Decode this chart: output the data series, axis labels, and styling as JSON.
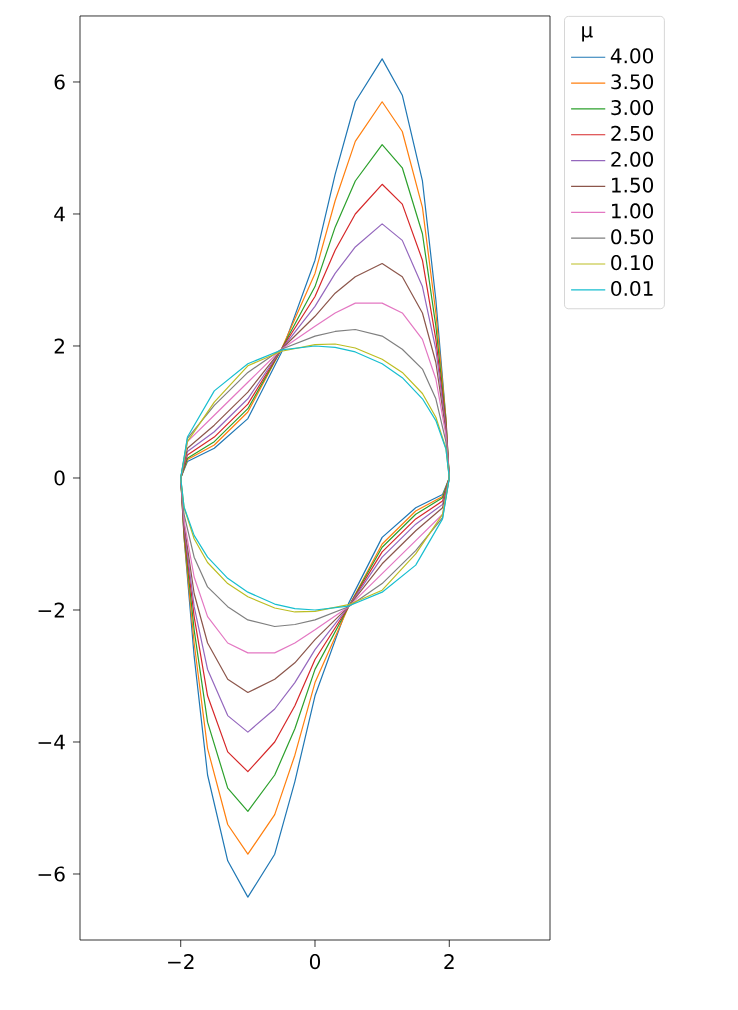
{
  "chart_data": {
    "type": "line",
    "legend_title": "μ",
    "legend": "right",
    "marker": "none",
    "line_style": "solid",
    "xlim": [
      -3.5,
      3.5
    ],
    "ylim": [
      -7,
      7
    ],
    "xticks": [
      {
        "value": -2,
        "label": "−2"
      },
      0,
      2
    ],
    "yticks": [
      {
        "value": -6,
        "label": "−6"
      },
      {
        "value": -4,
        "label": "−4"
      },
      {
        "value": -2,
        "label": "−2"
      },
      0,
      2,
      4,
      6
    ],
    "series": [
      {
        "name": "4.00",
        "color": "#1f77b4",
        "x": [
          -2,
          -1.9,
          -1.5,
          -1,
          -0.5,
          0,
          0.3,
          0.6,
          1,
          1.3,
          1.6,
          1.8,
          1.95,
          2,
          1.9,
          1.5,
          1,
          0.5,
          0,
          -0.3,
          -0.6,
          -1,
          -1.3,
          -1.6,
          -1.8,
          -1.95,
          -2
        ],
        "values": [
          0,
          0.25,
          0.45,
          0.9,
          1.9,
          3.3,
          4.6,
          5.7,
          6.35,
          5.8,
          4.5,
          2.7,
          0.9,
          0,
          -0.25,
          -0.45,
          -0.9,
          -1.9,
          -3.3,
          -4.6,
          -5.7,
          -6.35,
          -5.8,
          -4.5,
          -2.7,
          -0.9,
          0
        ]
      },
      {
        "name": "3.50",
        "color": "#ff7f0e",
        "x": [
          -2,
          -1.9,
          -1.5,
          -1,
          -0.5,
          0,
          0.3,
          0.6,
          1,
          1.3,
          1.6,
          1.8,
          1.95,
          2,
          1.9,
          1.5,
          1,
          0.5,
          0,
          -0.3,
          -0.6,
          -1,
          -1.3,
          -1.6,
          -1.8,
          -1.95,
          -2
        ],
        "values": [
          0,
          0.28,
          0.5,
          1.0,
          1.95,
          3.1,
          4.2,
          5.1,
          5.7,
          5.25,
          4.1,
          2.5,
          0.9,
          0,
          -0.28,
          -0.5,
          -1.0,
          -1.95,
          -3.1,
          -4.2,
          -5.1,
          -5.7,
          -5.25,
          -4.1,
          -2.5,
          -0.9,
          0
        ]
      },
      {
        "name": "3.00",
        "color": "#2ca02c",
        "x": [
          -2,
          -1.9,
          -1.5,
          -1,
          -0.5,
          0,
          0.3,
          0.6,
          1,
          1.3,
          1.6,
          1.8,
          1.95,
          2,
          1.9,
          1.5,
          1,
          0.5,
          0,
          -0.3,
          -0.6,
          -1,
          -1.3,
          -1.6,
          -1.8,
          -1.95,
          -2
        ],
        "values": [
          0,
          0.3,
          0.55,
          1.05,
          1.95,
          2.9,
          3.8,
          4.5,
          5.05,
          4.7,
          3.7,
          2.3,
          0.85,
          0,
          -0.3,
          -0.55,
          -1.05,
          -1.95,
          -2.9,
          -3.8,
          -4.5,
          -5.05,
          -4.7,
          -3.7,
          -2.3,
          -0.85,
          0
        ]
      },
      {
        "name": "2.50",
        "color": "#d62728",
        "x": [
          -2,
          -1.9,
          -1.5,
          -1,
          -0.5,
          0,
          0.3,
          0.6,
          1,
          1.3,
          1.6,
          1.8,
          1.95,
          2,
          1.9,
          1.5,
          1,
          0.5,
          0,
          -0.3,
          -0.6,
          -1,
          -1.3,
          -1.6,
          -1.8,
          -1.95,
          -2
        ],
        "values": [
          0,
          0.35,
          0.62,
          1.12,
          1.95,
          2.75,
          3.45,
          4.0,
          4.45,
          4.15,
          3.3,
          2.1,
          0.8,
          0,
          -0.35,
          -0.62,
          -1.12,
          -1.95,
          -2.75,
          -3.45,
          -4.0,
          -4.45,
          -4.15,
          -3.3,
          -2.1,
          -0.8,
          0
        ]
      },
      {
        "name": "2.00",
        "color": "#9467bd",
        "x": [
          -2,
          -1.9,
          -1.5,
          -1,
          -0.5,
          0,
          0.3,
          0.6,
          1,
          1.3,
          1.6,
          1.8,
          1.95,
          2,
          1.9,
          1.5,
          1,
          0.5,
          0,
          -0.3,
          -0.6,
          -1,
          -1.3,
          -1.6,
          -1.8,
          -1.95,
          -2
        ],
        "values": [
          0,
          0.4,
          0.7,
          1.2,
          1.95,
          2.6,
          3.1,
          3.5,
          3.85,
          3.6,
          2.9,
          1.95,
          0.75,
          0,
          -0.4,
          -0.7,
          -1.2,
          -1.95,
          -2.6,
          -3.1,
          -3.5,
          -3.85,
          -3.6,
          -2.9,
          -1.95,
          -0.75,
          0
        ]
      },
      {
        "name": "1.50",
        "color": "#8c564b",
        "x": [
          -2,
          -1.9,
          -1.5,
          -1,
          -0.5,
          0,
          0.3,
          0.6,
          1,
          1.3,
          1.6,
          1.8,
          1.95,
          2,
          1.9,
          1.5,
          1,
          0.5,
          0,
          -0.3,
          -0.6,
          -1,
          -1.3,
          -1.6,
          -1.8,
          -1.95,
          -2
        ],
        "values": [
          0,
          0.45,
          0.8,
          1.3,
          1.95,
          2.45,
          2.8,
          3.05,
          3.25,
          3.05,
          2.5,
          1.75,
          0.7,
          0,
          -0.45,
          -0.8,
          -1.3,
          -1.95,
          -2.45,
          -2.8,
          -3.05,
          -3.25,
          -3.05,
          -2.5,
          -1.75,
          -0.7,
          0
        ]
      },
      {
        "name": "1.00",
        "color": "#e377c2",
        "x": [
          -2,
          -1.9,
          -1.5,
          -1,
          -0.5,
          0,
          0.3,
          0.6,
          1,
          1.3,
          1.6,
          1.8,
          1.95,
          2,
          1.9,
          1.5,
          1,
          0.5,
          0,
          -0.3,
          -0.6,
          -1,
          -1.3,
          -1.6,
          -1.8,
          -1.95,
          -2
        ],
        "values": [
          0,
          0.55,
          0.95,
          1.45,
          1.95,
          2.3,
          2.5,
          2.65,
          2.65,
          2.5,
          2.1,
          1.5,
          0.65,
          0,
          -0.55,
          -0.95,
          -1.45,
          -1.95,
          -2.3,
          -2.5,
          -2.65,
          -2.65,
          -2.5,
          -2.1,
          -1.5,
          -0.65,
          0
        ]
      },
      {
        "name": "0.50",
        "color": "#7f7f7f",
        "x": [
          -2,
          -1.9,
          -1.5,
          -1,
          -0.5,
          0,
          0.3,
          0.6,
          1,
          1.3,
          1.6,
          1.8,
          1.95,
          2,
          1.9,
          1.5,
          1,
          0.5,
          0,
          -0.3,
          -0.6,
          -1,
          -1.3,
          -1.6,
          -1.8,
          -1.95,
          -2
        ],
        "values": [
          0,
          0.6,
          1.1,
          1.6,
          1.95,
          2.15,
          2.22,
          2.25,
          2.15,
          1.95,
          1.65,
          1.2,
          0.55,
          0,
          -0.6,
          -1.1,
          -1.6,
          -1.95,
          -2.15,
          -2.22,
          -2.25,
          -2.15,
          -1.95,
          -1.65,
          -1.2,
          -0.55,
          0
        ]
      },
      {
        "name": "0.10",
        "color": "#bcbd22",
        "x": [
          -2,
          -1.9,
          -1.5,
          -1,
          -0.5,
          0,
          0.3,
          0.6,
          1,
          1.3,
          1.6,
          1.8,
          1.95,
          2,
          1.9,
          1.5,
          1,
          0.5,
          0,
          -0.3,
          -0.6,
          -1,
          -1.3,
          -1.6,
          -1.8,
          -1.95,
          -2
        ],
        "values": [
          0,
          0.55,
          1.15,
          1.7,
          1.92,
          2.02,
          2.03,
          1.97,
          1.8,
          1.6,
          1.28,
          0.92,
          0.45,
          0,
          -0.55,
          -1.15,
          -1.7,
          -1.92,
          -2.02,
          -2.03,
          -1.97,
          -1.8,
          -1.6,
          -1.28,
          -0.92,
          -0.45,
          0
        ]
      },
      {
        "name": "0.01",
        "color": "#17becf",
        "x": [
          -2,
          -1.9,
          -1.5,
          -1,
          -0.5,
          0,
          0.3,
          0.6,
          1,
          1.3,
          1.6,
          1.8,
          1.95,
          2,
          1.9,
          1.5,
          1,
          0.5,
          0,
          -0.3,
          -0.6,
          -1,
          -1.3,
          -1.6,
          -1.8,
          -1.95,
          -2
        ],
        "values": [
          0,
          0.62,
          1.32,
          1.73,
          1.94,
          2.0,
          1.98,
          1.91,
          1.73,
          1.52,
          1.2,
          0.87,
          0.44,
          0,
          -0.62,
          -1.32,
          -1.73,
          -1.94,
          -2.0,
          -1.98,
          -1.91,
          -1.73,
          -1.52,
          -1.2,
          -0.87,
          -0.44,
          0
        ]
      }
    ]
  }
}
